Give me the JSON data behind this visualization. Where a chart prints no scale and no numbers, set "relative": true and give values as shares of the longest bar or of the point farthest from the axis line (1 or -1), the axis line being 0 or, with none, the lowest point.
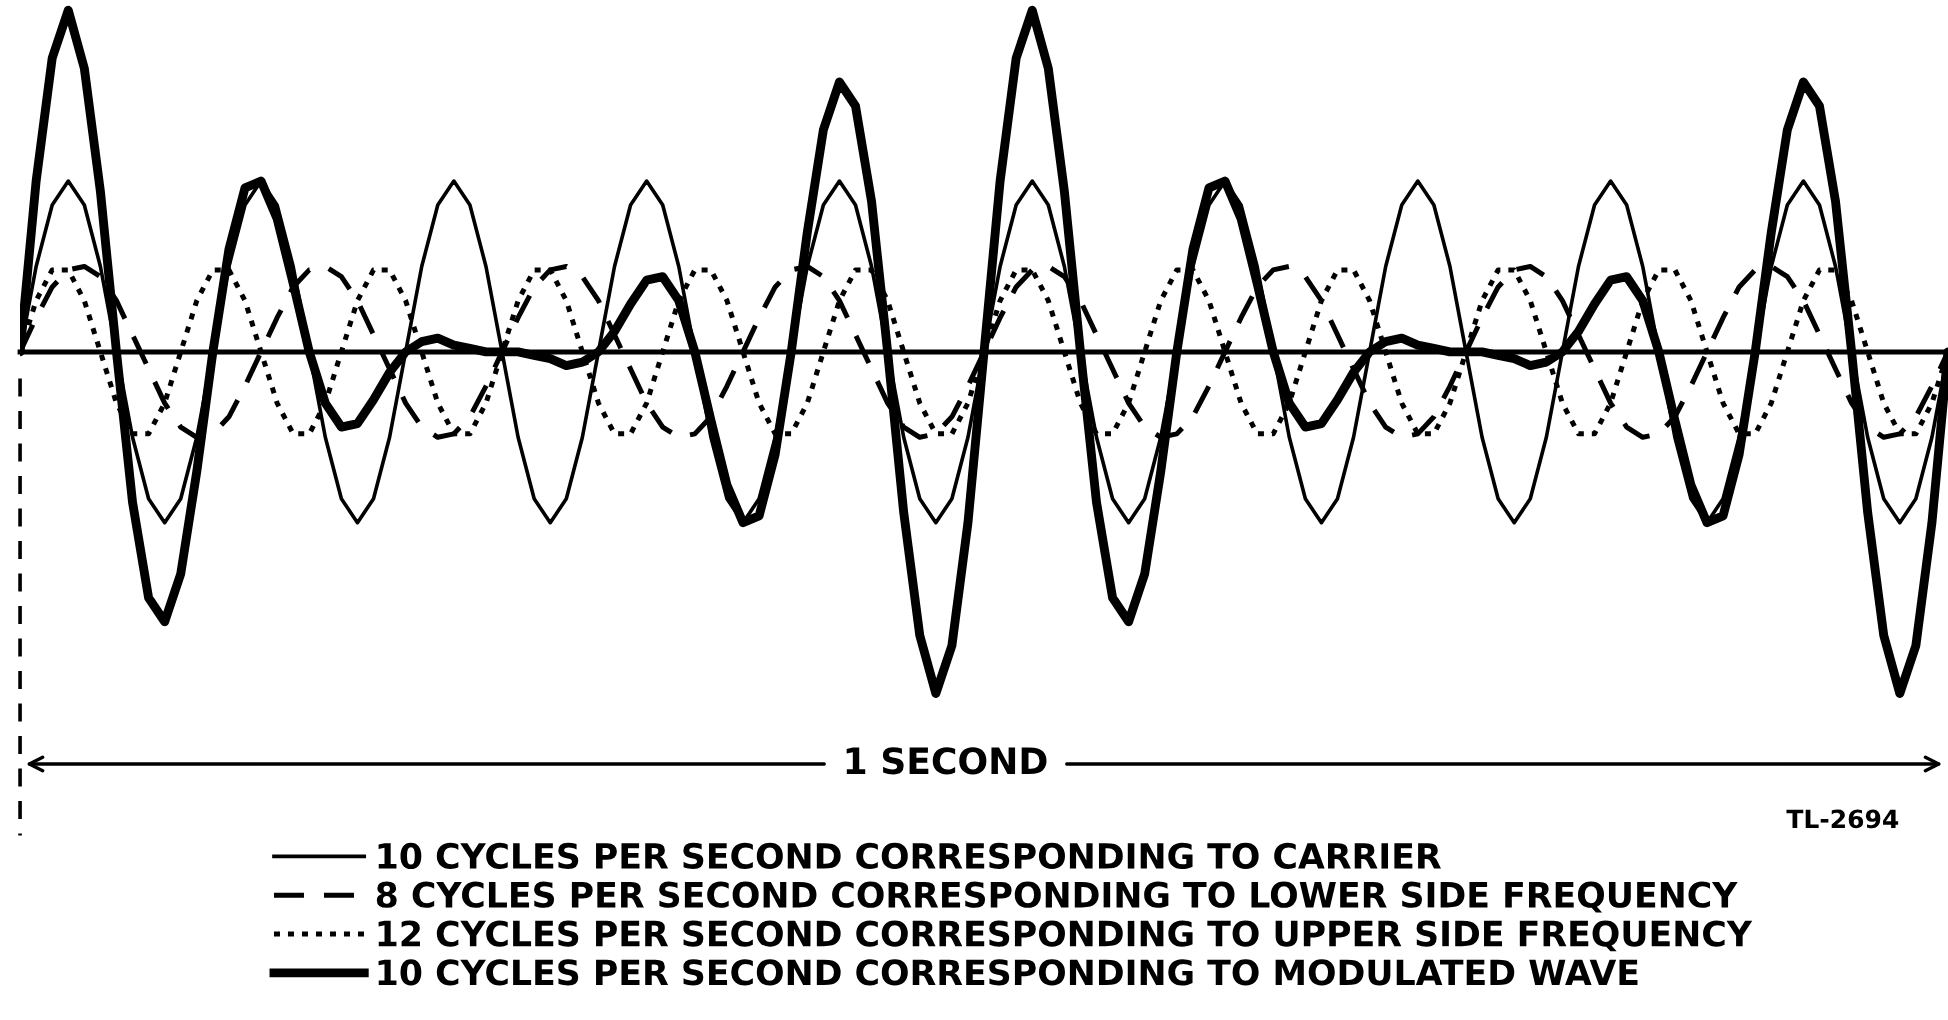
{
  "chart_data": {
    "type": "line",
    "relative": true,
    "legend": "bottom",
    "marker": "none",
    "annotations": [
      "1 SECOND",
      "TL-2694"
    ],
    "categories": [
      null,
      null,
      null,
      null,
      null,
      null,
      null,
      null,
      null,
      null,
      null,
      null,
      null,
      null,
      null,
      null,
      null,
      null,
      null,
      null,
      null,
      null,
      null,
      null,
      null,
      null,
      null,
      null,
      null,
      null,
      null,
      null,
      null,
      null,
      null,
      null,
      null,
      null,
      null,
      null,
      null,
      null,
      null,
      null,
      null,
      null,
      null,
      null,
      null,
      null,
      null,
      null,
      null,
      null,
      null,
      null,
      null,
      null,
      null,
      null,
      null,
      null,
      null,
      null,
      null,
      null,
      null,
      null,
      null,
      null,
      null,
      null,
      null,
      null,
      null,
      null,
      null,
      null,
      null,
      null,
      null,
      null,
      null,
      null,
      null,
      null,
      null,
      null,
      null,
      null,
      null,
      null,
      null,
      null,
      null,
      null,
      null,
      null,
      null,
      null,
      null,
      null,
      null,
      null,
      null,
      null,
      null,
      null,
      null,
      null,
      null,
      null,
      null,
      null,
      null,
      null,
      null,
      null,
      null,
      null,
      null
    ],
    "series": [
      {
        "name": "10 CYCLES PER SECOND CORRESPONDING TO CARRIER",
        "color": "#000000",
        "line_style": "solid",
        "values": [
          0,
          0.25,
          0.43,
          0.5,
          0.43,
          0.25,
          0,
          -0.25,
          -0.43,
          -0.5,
          -0.43,
          -0.25,
          0,
          0.25,
          0.43,
          0.5,
          0.43,
          0.25,
          0,
          -0.25,
          -0.43,
          -0.5,
          -0.43,
          -0.25,
          0,
          0.25,
          0.43,
          0.5,
          0.43,
          0.25,
          0,
          -0.25,
          -0.43,
          -0.5,
          -0.43,
          -0.25,
          0,
          0.25,
          0.43,
          0.5,
          0.43,
          0.25,
          0,
          -0.25,
          -0.43,
          -0.5,
          -0.43,
          -0.25,
          0,
          0.25,
          0.43,
          0.5,
          0.43,
          0.25,
          0,
          -0.25,
          -0.43,
          -0.5,
          -0.43,
          -0.25,
          0,
          0.25,
          0.43,
          0.5,
          0.43,
          0.25,
          0,
          -0.25,
          -0.43,
          -0.5,
          -0.43,
          -0.25,
          0,
          0.25,
          0.43,
          0.5,
          0.43,
          0.25,
          0,
          -0.25,
          -0.43,
          -0.5,
          -0.43,
          -0.25,
          0,
          0.25,
          0.43,
          0.5,
          0.43,
          0.25,
          0,
          -0.25,
          -0.43,
          -0.5,
          -0.43,
          -0.25,
          0,
          0.25,
          0.43,
          0.5,
          0.43,
          0.25,
          0,
          -0.25,
          -0.43,
          -0.5,
          -0.43,
          -0.25,
          0,
          0.25,
          0.43,
          0.5,
          0.43,
          0.25,
          0,
          -0.25,
          -0.43,
          -0.5,
          -0.43,
          -0.25,
          0
        ]
      },
      {
        "name": "8 CYCLES PER SECOND CORRESPONDING TO LOWER SIDE FREQUENCY",
        "color": "#000000",
        "line_style": "dashed",
        "values": [
          0,
          0.1,
          0.19,
          0.24,
          0.25,
          0.22,
          0.15,
          0.05,
          -0.05,
          -0.15,
          -0.22,
          -0.25,
          -0.24,
          -0.19,
          -0.1,
          0,
          0.1,
          0.19,
          0.24,
          0.25,
          0.22,
          0.15,
          0.05,
          -0.05,
          -0.15,
          -0.22,
          -0.25,
          -0.24,
          -0.19,
          -0.1,
          0,
          0.1,
          0.19,
          0.24,
          0.25,
          0.22,
          0.15,
          0.05,
          -0.05,
          -0.15,
          -0.22,
          -0.25,
          -0.24,
          -0.19,
          -0.1,
          0,
          0.1,
          0.19,
          0.24,
          0.25,
          0.22,
          0.15,
          0.05,
          -0.05,
          -0.15,
          -0.22,
          -0.25,
          -0.24,
          -0.19,
          -0.1,
          0,
          0.1,
          0.19,
          0.24,
          0.25,
          0.22,
          0.15,
          0.05,
          -0.05,
          -0.15,
          -0.22,
          -0.25,
          -0.24,
          -0.19,
          -0.1,
          0,
          0.1,
          0.19,
          0.24,
          0.25,
          0.22,
          0.15,
          0.05,
          -0.05,
          -0.15,
          -0.22,
          -0.25,
          -0.24,
          -0.19,
          -0.1,
          0,
          0.1,
          0.19,
          0.24,
          0.25,
          0.22,
          0.15,
          0.05,
          -0.05,
          -0.15,
          -0.22,
          -0.25,
          -0.24,
          -0.19,
          -0.1,
          0,
          0.1,
          0.19,
          0.24,
          0.25,
          0.22,
          0.15,
          0.05,
          -0.05,
          -0.15,
          -0.22,
          -0.25,
          -0.24,
          -0.19,
          -0.1,
          0
        ]
      },
      {
        "name": "12 CYCLES PER SECOND CORRESPONDING TO UPPER SIDE FREQUENCY",
        "color": "#000000",
        "line_style": "dotted",
        "values": [
          0,
          0.15,
          0.24,
          0.24,
          0.15,
          0,
          -0.15,
          -0.24,
          -0.24,
          -0.15,
          0,
          0.15,
          0.24,
          0.24,
          0.15,
          0,
          -0.15,
          -0.24,
          -0.24,
          -0.15,
          0,
          0.15,
          0.24,
          0.24,
          0.15,
          0,
          -0.15,
          -0.24,
          -0.24,
          -0.15,
          0,
          0.15,
          0.24,
          0.24,
          0.15,
          0,
          -0.15,
          -0.24,
          -0.24,
          -0.15,
          0,
          0.15,
          0.24,
          0.24,
          0.15,
          0,
          -0.15,
          -0.24,
          -0.24,
          -0.15,
          0,
          0.15,
          0.24,
          0.24,
          0.15,
          0,
          -0.15,
          -0.24,
          -0.24,
          -0.15,
          0,
          0.15,
          0.24,
          0.24,
          0.15,
          0,
          -0.15,
          -0.24,
          -0.24,
          -0.15,
          0,
          0.15,
          0.24,
          0.24,
          0.15,
          0,
          -0.15,
          -0.24,
          -0.24,
          -0.15,
          0,
          0.15,
          0.24,
          0.24,
          0.15,
          0,
          -0.15,
          -0.24,
          -0.24,
          -0.15,
          0,
          0.15,
          0.24,
          0.24,
          0.15,
          0,
          -0.15,
          -0.24,
          -0.24,
          -0.15,
          0,
          0.15,
          0.24,
          0.24,
          0.15,
          0,
          -0.15,
          -0.24,
          -0.24,
          -0.15,
          0,
          0.15,
          0.24,
          0.24,
          0.15,
          0,
          -0.15,
          -0.24,
          -0.24,
          -0.15,
          0
        ]
      },
      {
        "name": "10 CYCLES PER SECOND CORRESPONDING TO MODULATED WAVE",
        "color": "#000000",
        "line_style": "solid",
        "values": [
          0,
          0.5,
          0.86,
          1,
          0.83,
          0.47,
          0,
          -0.44,
          -0.72,
          -0.79,
          -0.65,
          -0.35,
          0,
          0.3,
          0.48,
          0.5,
          0.39,
          0.2,
          0,
          -0.15,
          -0.22,
          -0.21,
          -0.14,
          -0.06,
          0,
          0.03,
          0.04,
          0.02,
          0.01,
          0,
          0,
          0,
          -0.01,
          -0.02,
          -0.04,
          -0.03,
          0,
          0.06,
          0.14,
          0.21,
          0.22,
          0.15,
          0,
          -0.2,
          -0.39,
          -0.5,
          -0.48,
          -0.3,
          0,
          0.35,
          0.65,
          0.79,
          0.72,
          0.44,
          0,
          -0.47,
          -0.83,
          -1,
          -0.86,
          -0.5,
          0,
          0.5,
          0.86,
          1,
          0.83,
          0.47,
          0,
          -0.44,
          -0.72,
          -0.79,
          -0.65,
          -0.35,
          0,
          0.3,
          0.48,
          0.5,
          0.39,
          0.2,
          0,
          -0.15,
          -0.22,
          -0.21,
          -0.14,
          -0.06,
          0,
          0.03,
          0.04,
          0.02,
          0.01,
          0,
          0,
          0,
          -0.01,
          -0.02,
          -0.04,
          -0.03,
          0,
          0.06,
          0.14,
          0.21,
          0.22,
          0.15,
          0,
          -0.2,
          -0.39,
          -0.5,
          -0.48,
          -0.3,
          0,
          0.35,
          0.65,
          0.79,
          0.72,
          0.44,
          0,
          -0.47,
          -0.83,
          -1,
          -0.86,
          -0.5,
          0
        ]
      }
    ]
  }
}
